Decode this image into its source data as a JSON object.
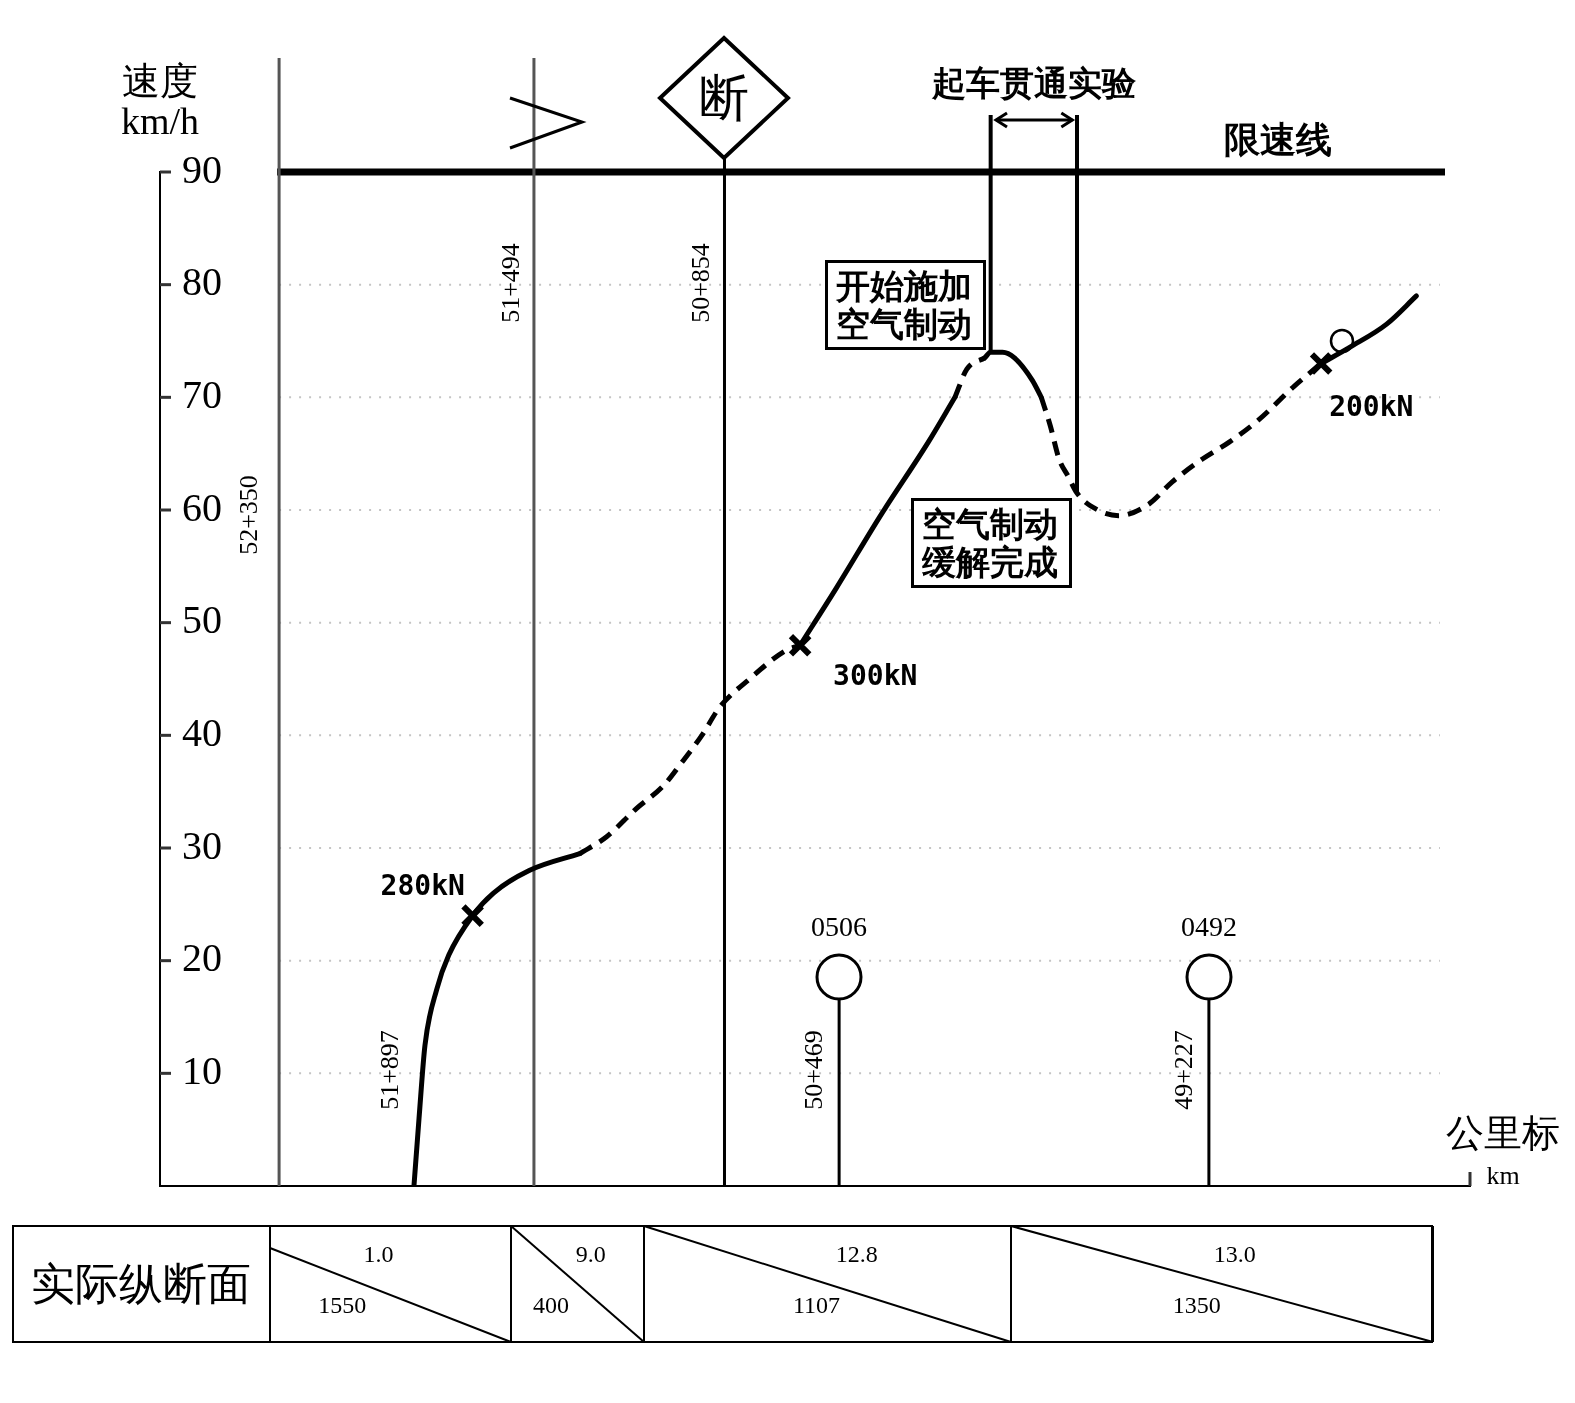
{
  "chart_data": [
    {
      "type": "line",
      "xlabel": "公里标 km",
      "ylabel": "速度 km/h",
      "xlim": [
        52.75,
        48.35
      ],
      "ylim": [
        0,
        90
      ],
      "yticks": [
        10,
        20,
        30,
        40,
        50,
        60,
        70,
        80,
        90
      ],
      "tick_labels": "y",
      "grid": "y",
      "marker": "none",
      "series": [
        {
          "type": "line",
          "line_style": "solid",
          "color": "#000000",
          "x": [
            51.897,
            51.88,
            51.86,
            51.82,
            51.78,
            51.7,
            51.63,
            51.51,
            51.34
          ],
          "values": [
            0,
            6,
            12.5,
            17.5,
            20.5,
            24,
            26,
            28,
            29.5
          ]
        },
        {
          "type": "line",
          "line_style": "dashed",
          "color": "#000000",
          "x": [
            51.34,
            51.25,
            51.15,
            51.06,
            51.0,
            50.93,
            50.87,
            50.77,
            50.65,
            50.6
          ],
          "values": [
            29.5,
            31,
            33.5,
            35.5,
            37.5,
            40,
            42.5,
            45,
            47.5,
            48
          ]
        },
        {
          "type": "line",
          "line_style": "solid",
          "color": "#000000",
          "x": [
            50.6,
            50.48,
            50.33,
            50.17,
            50.08
          ],
          "values": [
            48,
            53,
            59.5,
            66,
            70
          ]
        },
        {
          "type": "line",
          "line_style": "dashed",
          "color": "#000000",
          "x": [
            50.08,
            50.04,
            49.98
          ],
          "values": [
            70,
            72.5,
            73.5
          ]
        },
        {
          "type": "line",
          "line_style": "solid",
          "color": "#000000",
          "x": [
            49.98,
            49.96,
            49.92,
            49.88,
            49.82,
            49.79
          ],
          "values": [
            73.5,
            74,
            74,
            73.5,
            71.5,
            70
          ]
        },
        {
          "type": "line",
          "line_style": "dashed",
          "color": "#000000",
          "x": [
            49.79,
            49.76,
            49.73,
            49.7,
            49.67,
            49.6,
            49.53,
            49.43,
            49.35,
            49.25,
            49.16,
            49.06,
            48.94,
            48.85
          ],
          "values": [
            70,
            67.5,
            64.5,
            63,
            61.5,
            60,
            59.5,
            60.5,
            62.5,
            64.5,
            66,
            68,
            71,
            73
          ]
        },
        {
          "type": "line",
          "line_style": "solid",
          "color": "#000000",
          "x": [
            48.85,
            48.75,
            48.63,
            48.53
          ],
          "values": [
            73,
            74.5,
            76.5,
            79
          ]
        },
        {
          "type": "scatter",
          "marker": "cross",
          "color": "#000000",
          "x": [
            51.7,
            50.6,
            48.85
          ],
          "values": [
            24,
            48,
            73
          ]
        },
        {
          "type": "scatter",
          "marker": "circle",
          "color": "#000000",
          "x": [
            48.78
          ],
          "values": [
            75
          ]
        }
      ],
      "ref_lines": [
        {
          "axis": "y",
          "value": 90,
          "label": "限速线",
          "color": "#000000"
        },
        {
          "axis": "x",
          "value": 52.35,
          "label": "52+350",
          "color": "#555555"
        },
        {
          "axis": "x",
          "value": 51.494,
          "label": "51+494",
          "color": "#555555"
        },
        {
          "axis": "x",
          "value": 50.854,
          "color": "#000000"
        },
        {
          "axis": "x",
          "value": 50.469,
          "label": "50+469",
          "color": "#000000"
        },
        {
          "axis": "x",
          "value": 49.227,
          "label": "49+227",
          "color": "#000000"
        },
        {
          "axis": "x",
          "value": 49.96,
          "color": "#000000"
        },
        {
          "axis": "x",
          "value": 49.67,
          "color": "#000000"
        }
      ],
      "annotations": [
        {
          "text": "51+897",
          "x": 51.897,
          "y": 0
        },
        {
          "text": "280kN",
          "x": 51.7,
          "y": 24
        },
        {
          "text": "300kN",
          "x": 50.6,
          "y": 48
        },
        {
          "text": "200kN",
          "x": 48.85,
          "y": 73
        },
        {
          "text": "开始施加空气制动",
          "x": 49.96,
          "y": 74
        },
        {
          "text": "空气制动缓解完成",
          "x": 49.67,
          "y": 61.5
        },
        {
          "text": "断",
          "x": 50.854
        },
        "0506",
        "0492",
        "起车贯通实验",
        {
          "text": "50+854",
          "x": 50.854
        }
      ]
    },
    {
      "type": "other",
      "title": "实际纵断面",
      "annotations": [
        "1.0",
        "1550",
        "9.0",
        "400",
        "12.8",
        "1107",
        "13.0",
        "1350"
      ]
    }
  ]
}
